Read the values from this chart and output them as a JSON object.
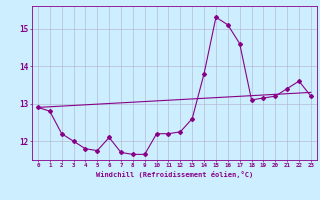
{
  "title": "",
  "xlabel": "Windchill (Refroidissement éolien,°C)",
  "x_hours": [
    0,
    1,
    2,
    3,
    4,
    5,
    6,
    7,
    8,
    9,
    10,
    11,
    12,
    13,
    14,
    15,
    16,
    17,
    18,
    19,
    20,
    21,
    22,
    23
  ],
  "main_curve": [
    12.9,
    12.8,
    12.2,
    12.0,
    11.8,
    11.75,
    12.1,
    11.7,
    11.65,
    11.65,
    12.2,
    12.2,
    12.25,
    12.6,
    13.8,
    15.3,
    15.1,
    14.6,
    13.1,
    13.15,
    13.2,
    13.4,
    13.6,
    13.2
  ],
  "trend_line": [
    12.9,
    13.3
  ],
  "background_color": "#cceeff",
  "grid_color": "#b0b0cc",
  "line_color": "#880088",
  "ylim": [
    11.5,
    15.6
  ],
  "xlim": [
    -0.5,
    23.5
  ],
  "yticks": [
    12,
    13,
    14,
    15
  ],
  "ytick_labels": [
    "12",
    "13",
    "14",
    "15"
  ],
  "figsize": [
    3.2,
    2.0
  ],
  "dpi": 100
}
